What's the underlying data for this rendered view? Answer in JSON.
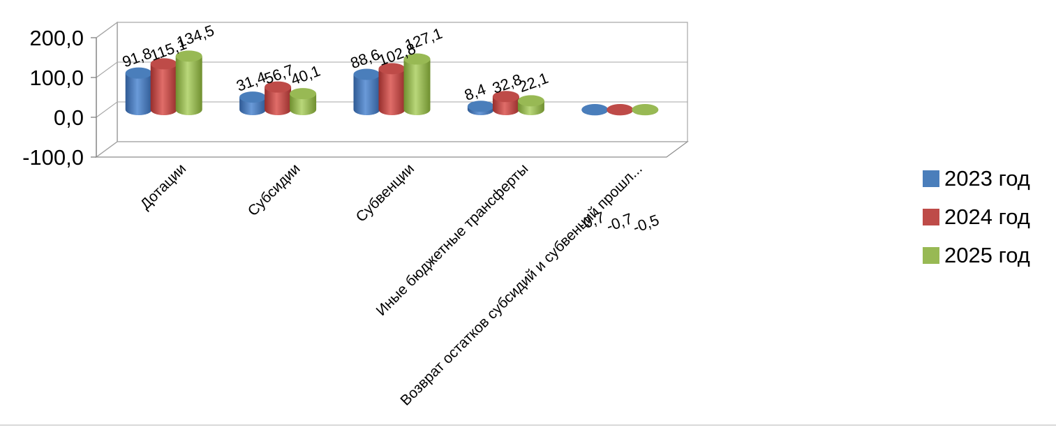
{
  "chart_data": {
    "type": "bar",
    "categories": [
      "Дотации",
      "Субсидии",
      "Субвенции",
      "Иные бюджетные трансферты",
      "Возврат остатков субсидий и субвенций прошл..."
    ],
    "series": [
      {
        "name": "2023 год",
        "values": [
          91.8,
          31.4,
          88.6,
          8.4,
          -0.7
        ],
        "labels": [
          "91,8",
          "31,4",
          "88,6",
          "8,4",
          "-0,7"
        ],
        "color": "#4a7ebb"
      },
      {
        "name": "2024 год",
        "values": [
          115.1,
          56.7,
          102.8,
          32.8,
          -0.7
        ],
        "labels": [
          "115,1",
          "56,7",
          "102,8",
          "32,8",
          "-0,7"
        ],
        "color": "#be4b48"
      },
      {
        "name": "2025 год",
        "values": [
          134.5,
          40.1,
          127.1,
          22.1,
          -0.5
        ],
        "labels": [
          "134,5",
          "40,1",
          "127,1",
          "22,1",
          "-0,5"
        ],
        "color": "#98b954"
      }
    ],
    "y_ticks": [
      "-100,0",
      "0,0",
      "100,0",
      "200,0"
    ],
    "ylim": [
      -100,
      200
    ],
    "grid": true,
    "legend_position": "right"
  }
}
